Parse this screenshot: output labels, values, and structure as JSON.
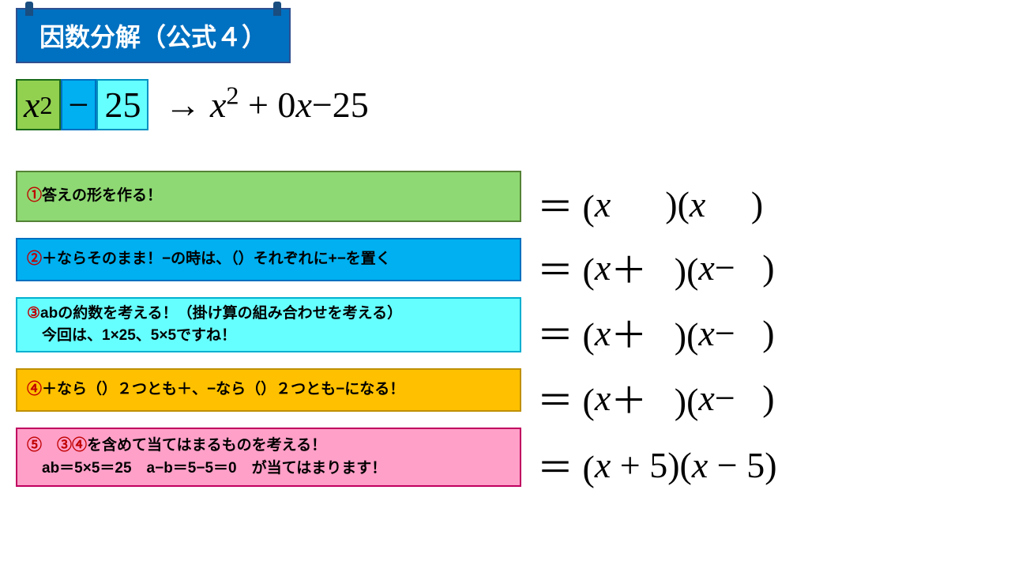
{
  "title": "因数分解（公式４）",
  "expression": {
    "box1_base": "x",
    "box1_sup": "2",
    "box2": "−",
    "box3": "25",
    "arrow": "→ ",
    "expanded_part1": "x",
    "expanded_sup": "2",
    "expanded_part2": " + 0x−25"
  },
  "steps": [
    {
      "text": "①答えの形を作る！"
    },
    {
      "text": "②＋ならそのまま！−の時は、（）それぞれに+−を置く"
    },
    {
      "text": "③abの約数を考える！（掛け算の組み合わせを考える）\n　今回は、1×25、5×5ですね！"
    },
    {
      "text": "④＋なら（）２つとも＋、−なら（）２つとも−になる！"
    },
    {
      "text": "⑤　③④を含めて当てはまるものを考える！\n　ab＝5×5＝25　a−b＝5−5＝0　が当てはまります！"
    }
  ],
  "results": {
    "r1": "＝ (x      )(x     )",
    "r2": "＝ (x＋   )(x−   )",
    "r3": "＝ (x＋   )(x−   )",
    "r4": "＝ (x＋   )(x−   )",
    "r5": "＝ (x + 5)(x − 5)"
  },
  "colors": {
    "title_bg": "#0070c0",
    "step1_bg": "#8ed973",
    "step2_bg": "#00b0f0",
    "step3_bg": "#66ffff",
    "step4_bg": "#ffc000",
    "step5_bg": "#ffa0c8",
    "circlenum": "#c00000"
  }
}
